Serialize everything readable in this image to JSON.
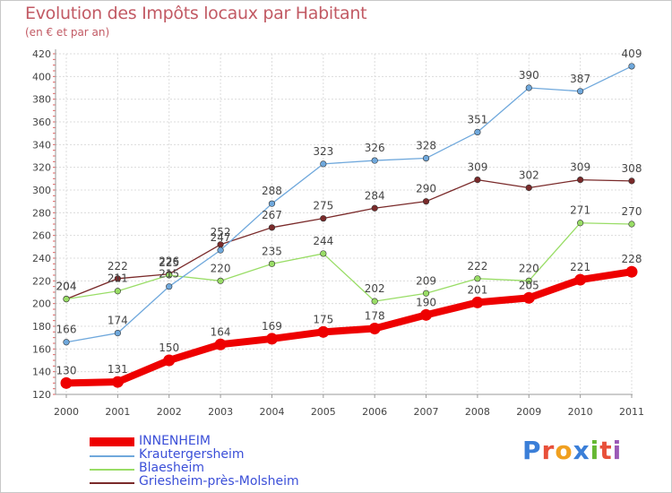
{
  "chart_data": {
    "type": "line",
    "title": "Evolution des Impôts locaux par Habitant",
    "subtitle": "(en € et par an)",
    "xlabel": "",
    "ylabel": "",
    "x": [
      "2000",
      "2001",
      "2002",
      "2003",
      "2004",
      "2005",
      "2006",
      "2007",
      "2008",
      "2009",
      "2010",
      "2011"
    ],
    "ylim": [
      120,
      420
    ],
    "yticks": [
      120,
      140,
      160,
      180,
      200,
      220,
      240,
      260,
      280,
      300,
      320,
      340,
      360,
      380,
      400,
      420
    ],
    "grid": true,
    "legend_position": "bottom-left",
    "series": [
      {
        "name": "INNENHEIM",
        "color": "#ee0000",
        "values": [
          130,
          131,
          150,
          164,
          169,
          175,
          178,
          190,
          201,
          205,
          221,
          228
        ],
        "labels": [
          "130",
          "131",
          "150",
          "164",
          "169",
          "175",
          "178",
          "190",
          "201",
          "205",
          "221",
          "228"
        ]
      },
      {
        "name": "Krautergersheim",
        "color": "#6fa8dc",
        "values": [
          166,
          174,
          215,
          247,
          288,
          323,
          326,
          328,
          351,
          390,
          387,
          409
        ],
        "labels": [
          "166",
          "174",
          "215",
          "247",
          "288",
          "323",
          "326",
          "328",
          "351",
          "390",
          "387",
          "409"
        ]
      },
      {
        "name": "Blaesheim",
        "color": "#99dd66",
        "values": [
          204,
          211,
          225,
          220,
          235,
          244,
          202,
          209,
          222,
          220,
          271,
          270
        ],
        "labels": [
          "204",
          "211",
          "225",
          "220",
          "235",
          "244",
          "202",
          "209",
          "222",
          "220",
          "271",
          "270"
        ]
      },
      {
        "name": "Griesheim-près-Molsheim",
        "color": "#7a2a2a",
        "values": [
          204,
          222,
          226,
          252,
          267,
          275,
          284,
          290,
          309,
          302,
          309,
          308
        ],
        "labels": [
          "204",
          "222",
          "226",
          "252",
          "267",
          "275",
          "284",
          "290",
          "309",
          "302",
          "309",
          "308"
        ]
      }
    ]
  },
  "logo": {
    "text": "Proxiti"
  }
}
